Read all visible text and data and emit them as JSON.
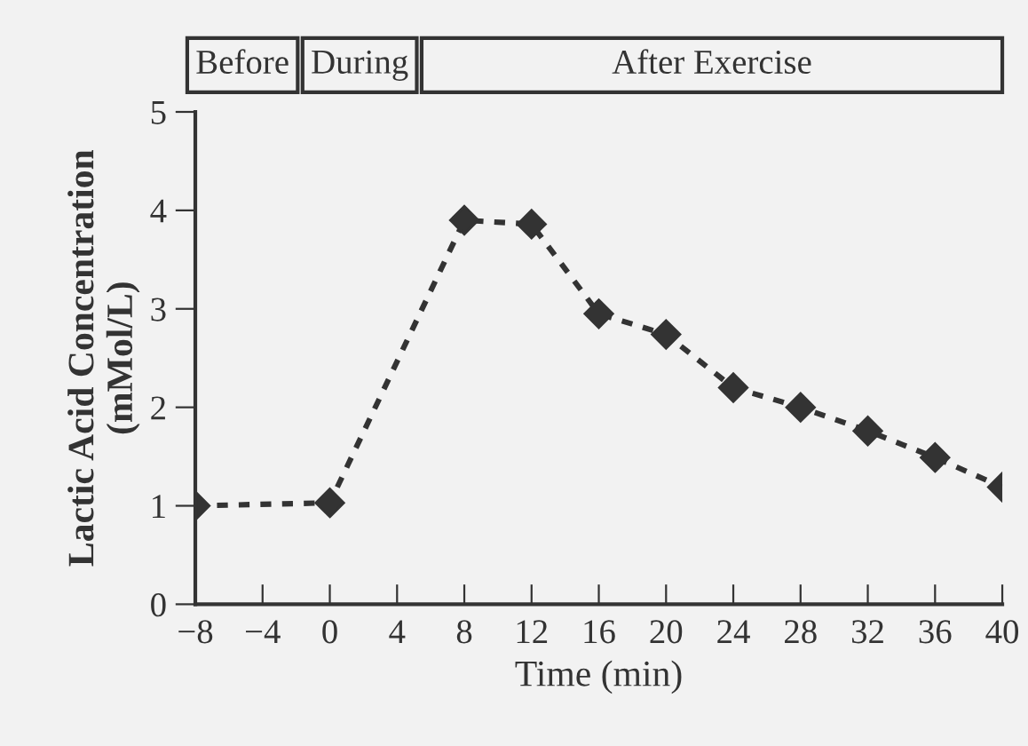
{
  "chart_data": {
    "type": "line",
    "xlabel": "Time (min)",
    "ylabel": "Lactic Acid Concentration\n(mMol/L)",
    "x": [
      -8,
      0,
      8,
      12,
      16,
      20,
      24,
      28,
      32,
      36,
      40
    ],
    "series": [
      {
        "color": "#333333",
        "values": [
          1.0,
          1.03,
          3.9,
          3.86,
          2.95,
          2.74,
          2.2,
          2.0,
          1.76,
          1.49,
          1.19
        ]
      }
    ],
    "xlim": [
      -8,
      40
    ],
    "ylim": [
      0,
      5
    ],
    "xticks": [
      -8,
      -4,
      0,
      4,
      8,
      12,
      16,
      20,
      24,
      28,
      32,
      36,
      40
    ],
    "yticks": [
      0,
      1,
      2,
      3,
      4,
      5
    ],
    "annotations": [
      "Before",
      "During",
      "After Exercise"
    ],
    "marker": "diamond",
    "line_style": "dashed",
    "grid": false,
    "legend": false
  }
}
